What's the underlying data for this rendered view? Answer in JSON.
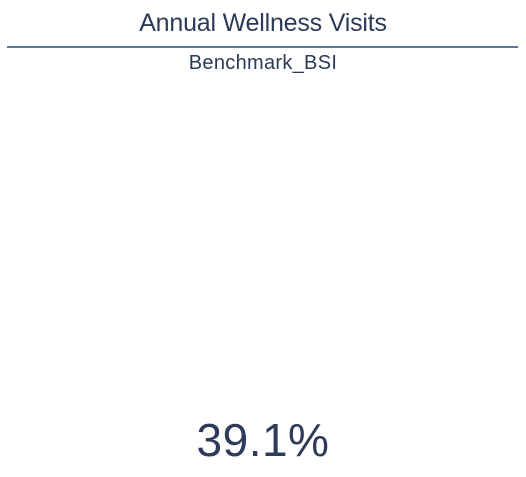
{
  "card": {
    "title": "Annual Wellness Visits",
    "subtitle": "Benchmark_BSI",
    "value": "39.1%"
  },
  "colors": {
    "text": "#2b3a55",
    "divider": "#5d7893",
    "background": "#ffffff"
  }
}
